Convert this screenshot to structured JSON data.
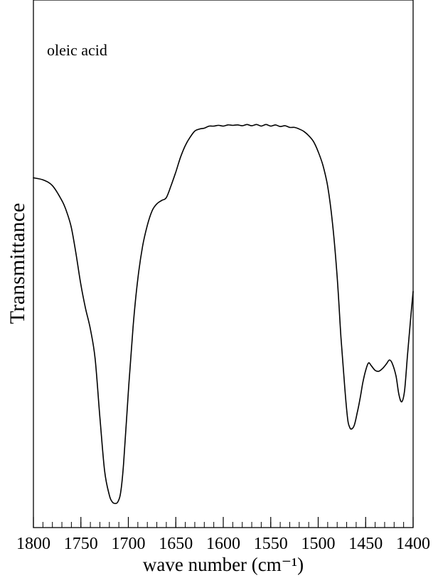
{
  "chart_data": {
    "type": "line",
    "annotation": "oleic acid",
    "xlabel": "wave number (cm⁻¹)",
    "ylabel": "Transmittance",
    "xlim": [
      1800,
      1400
    ],
    "x_reversed": true,
    "y_ticks_shown": false,
    "grid": false,
    "xticks": [
      1800,
      1750,
      1700,
      1650,
      1600,
      1550,
      1500,
      1450,
      1400
    ],
    "x_minor_step": 10,
    "series": [
      {
        "x": [
          1800,
          1790,
          1780,
          1770,
          1765,
          1760,
          1755,
          1750,
          1745,
          1740,
          1735,
          1730,
          1725,
          1720,
          1717,
          1714,
          1711,
          1708,
          1705,
          1700,
          1695,
          1690,
          1685,
          1680,
          1675,
          1670,
          1665,
          1660,
          1655,
          1650,
          1645,
          1640,
          1635,
          1630,
          1625,
          1620,
          1615,
          1610,
          1605,
          1600,
          1595,
          1590,
          1585,
          1580,
          1575,
          1570,
          1565,
          1560,
          1555,
          1550,
          1545,
          1540,
          1535,
          1530,
          1525,
          1520,
          1515,
          1510,
          1505,
          1500,
          1495,
          1490,
          1485,
          1480,
          1476,
          1472,
          1469,
          1467,
          1465,
          1462,
          1459,
          1456,
          1453,
          1450,
          1447,
          1444,
          1440,
          1436,
          1432,
          1428,
          1425,
          1422,
          1418,
          1415,
          1412,
          1409,
          1406,
          1403,
          1400
        ],
        "y": [
          0.788,
          0.783,
          0.769,
          0.733,
          0.706,
          0.667,
          0.602,
          0.529,
          0.471,
          0.422,
          0.35,
          0.21,
          0.079,
          0.02,
          0.004,
          0.0,
          0.004,
          0.028,
          0.096,
          0.27,
          0.428,
          0.544,
          0.622,
          0.673,
          0.708,
          0.725,
          0.733,
          0.74,
          0.769,
          0.802,
          0.838,
          0.866,
          0.886,
          0.901,
          0.906,
          0.908,
          0.913,
          0.913,
          0.915,
          0.913,
          0.916,
          0.915,
          0.916,
          0.914,
          0.917,
          0.914,
          0.917,
          0.913,
          0.917,
          0.913,
          0.916,
          0.912,
          0.914,
          0.91,
          0.91,
          0.906,
          0.9,
          0.89,
          0.876,
          0.851,
          0.818,
          0.767,
          0.68,
          0.548,
          0.402,
          0.28,
          0.205,
          0.185,
          0.18,
          0.189,
          0.218,
          0.252,
          0.292,
          0.322,
          0.34,
          0.333,
          0.322,
          0.32,
          0.327,
          0.338,
          0.347,
          0.339,
          0.308,
          0.264,
          0.246,
          0.273,
          0.357,
          0.437,
          0.513
        ]
      }
    ]
  }
}
